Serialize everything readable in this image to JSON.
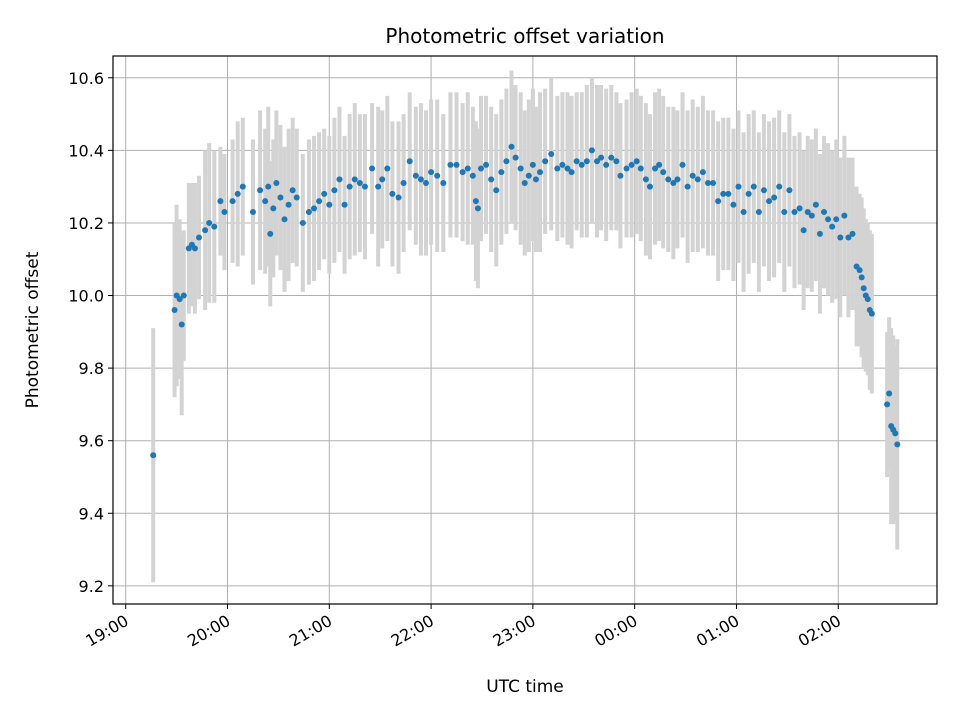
{
  "chart_data": {
    "type": "scatter",
    "title": "Photometric offset variation",
    "xlabel": "UTC time",
    "ylabel": "Photometric offset",
    "x_unit": "hours (clock time, values after 24 = next day)",
    "xlim": [
      18.875,
      26.97
    ],
    "ylim": [
      9.15,
      10.66
    ],
    "grid": true,
    "x_ticks": [
      {
        "value": 19,
        "label": "19:00"
      },
      {
        "value": 20,
        "label": "20:00"
      },
      {
        "value": 21,
        "label": "21:00"
      },
      {
        "value": 22,
        "label": "22:00"
      },
      {
        "value": 23,
        "label": "23:00"
      },
      {
        "value": 24,
        "label": "00:00"
      },
      {
        "value": 25,
        "label": "01:00"
      },
      {
        "value": 26,
        "label": "02:00"
      }
    ],
    "y_ticks": [
      {
        "value": 9.2,
        "label": "9.2"
      },
      {
        "value": 9.4,
        "label": "9.4"
      },
      {
        "value": 9.6,
        "label": "9.6"
      },
      {
        "value": 9.8,
        "label": "9.8"
      },
      {
        "value": 10.0,
        "label": "10.0"
      },
      {
        "value": 10.2,
        "label": "10.2"
      },
      {
        "value": 10.4,
        "label": "10.4"
      },
      {
        "value": 10.6,
        "label": "10.6"
      }
    ],
    "colors": {
      "point": "#1f77b4",
      "errorbar": "#d3d3d3",
      "grid": "#b0b0b0"
    },
    "series": [
      {
        "values": [
          [
            19.27,
            9.56,
            0.35
          ],
          [
            19.48,
            9.96,
            0.24
          ],
          [
            19.5,
            10.0,
            0.25
          ],
          [
            19.53,
            9.99,
            0.22
          ],
          [
            19.55,
            9.92,
            0.25
          ],
          [
            19.57,
            10.0,
            0.18
          ],
          [
            19.62,
            10.13,
            0.18
          ],
          [
            19.65,
            10.14,
            0.17
          ],
          [
            19.68,
            10.13,
            0.18
          ],
          [
            19.72,
            10.16,
            0.17
          ],
          [
            19.78,
            10.18,
            0.22
          ],
          [
            19.82,
            10.2,
            0.22
          ],
          [
            19.87,
            10.19,
            0.21
          ],
          [
            19.93,
            10.26,
            0.15
          ],
          [
            19.97,
            10.23,
            0.16
          ],
          [
            20.05,
            10.26,
            0.17
          ],
          [
            20.1,
            10.28,
            0.2
          ],
          [
            20.15,
            10.3,
            0.19
          ],
          [
            20.25,
            10.23,
            0.2
          ],
          [
            20.32,
            10.29,
            0.22
          ],
          [
            20.37,
            10.26,
            0.2
          ],
          [
            20.4,
            10.3,
            0.22
          ],
          [
            20.42,
            10.17,
            0.2
          ],
          [
            20.45,
            10.24,
            0.19
          ],
          [
            20.48,
            10.31,
            0.2
          ],
          [
            20.52,
            10.27,
            0.2
          ],
          [
            20.56,
            10.21,
            0.2
          ],
          [
            20.6,
            10.25,
            0.21
          ],
          [
            20.64,
            10.29,
            0.2
          ],
          [
            20.68,
            10.27,
            0.19
          ],
          [
            20.74,
            10.2,
            0.19
          ],
          [
            20.8,
            10.23,
            0.2
          ],
          [
            20.85,
            10.24,
            0.2
          ],
          [
            20.9,
            10.26,
            0.19
          ],
          [
            20.95,
            10.28,
            0.18
          ],
          [
            21.0,
            10.25,
            0.19
          ],
          [
            21.05,
            10.29,
            0.2
          ],
          [
            21.1,
            10.32,
            0.2
          ],
          [
            21.15,
            10.25,
            0.19
          ],
          [
            21.2,
            10.3,
            0.2
          ],
          [
            21.25,
            10.32,
            0.21
          ],
          [
            21.3,
            10.31,
            0.19
          ],
          [
            21.35,
            10.3,
            0.2
          ],
          [
            21.42,
            10.35,
            0.18
          ],
          [
            21.48,
            10.3,
            0.22
          ],
          [
            21.52,
            10.32,
            0.19
          ],
          [
            21.57,
            10.35,
            0.2
          ],
          [
            21.62,
            10.28,
            0.2
          ],
          [
            21.68,
            10.27,
            0.21
          ],
          [
            21.73,
            10.31,
            0.19
          ],
          [
            21.79,
            10.37,
            0.19
          ],
          [
            21.85,
            10.33,
            0.19
          ],
          [
            21.9,
            10.32,
            0.21
          ],
          [
            21.95,
            10.31,
            0.2
          ],
          [
            22.0,
            10.34,
            0.2
          ],
          [
            22.06,
            10.33,
            0.21
          ],
          [
            22.12,
            10.31,
            0.19
          ],
          [
            22.19,
            10.36,
            0.2
          ],
          [
            22.25,
            10.36,
            0.2
          ],
          [
            22.31,
            10.34,
            0.19
          ],
          [
            22.36,
            10.35,
            0.21
          ],
          [
            22.41,
            10.33,
            0.19
          ],
          [
            22.44,
            10.26,
            0.22
          ],
          [
            22.46,
            10.24,
            0.22
          ],
          [
            22.49,
            10.35,
            0.2
          ],
          [
            22.54,
            10.36,
            0.19
          ],
          [
            22.59,
            10.32,
            0.2
          ],
          [
            22.64,
            10.29,
            0.21
          ],
          [
            22.69,
            10.34,
            0.2
          ],
          [
            22.74,
            10.37,
            0.2
          ],
          [
            22.79,
            10.41,
            0.21
          ],
          [
            22.83,
            10.38,
            0.2
          ],
          [
            22.88,
            10.35,
            0.21
          ],
          [
            22.92,
            10.31,
            0.2
          ],
          [
            22.96,
            10.33,
            0.21
          ],
          [
            23.0,
            10.36,
            0.21
          ],
          [
            23.03,
            10.32,
            0.2
          ],
          [
            23.07,
            10.34,
            0.22
          ],
          [
            23.12,
            10.37,
            0.2
          ],
          [
            23.18,
            10.39,
            0.21
          ],
          [
            23.24,
            10.35,
            0.2
          ],
          [
            23.29,
            10.36,
            0.2
          ],
          [
            23.34,
            10.35,
            0.21
          ],
          [
            23.38,
            10.34,
            0.21
          ],
          [
            23.43,
            10.37,
            0.19
          ],
          [
            23.48,
            10.36,
            0.2
          ],
          [
            23.53,
            10.37,
            0.21
          ],
          [
            23.58,
            10.4,
            0.2
          ],
          [
            23.63,
            10.37,
            0.21
          ],
          [
            23.67,
            10.38,
            0.2
          ],
          [
            23.72,
            10.36,
            0.21
          ],
          [
            23.77,
            10.38,
            0.2
          ],
          [
            23.82,
            10.37,
            0.19
          ],
          [
            23.86,
            10.33,
            0.2
          ],
          [
            23.92,
            10.35,
            0.19
          ],
          [
            23.97,
            10.36,
            0.2
          ],
          [
            24.02,
            10.37,
            0.2
          ],
          [
            24.06,
            10.35,
            0.2
          ],
          [
            24.11,
            10.32,
            0.21
          ],
          [
            24.15,
            10.3,
            0.2
          ],
          [
            24.2,
            10.35,
            0.21
          ],
          [
            24.24,
            10.36,
            0.21
          ],
          [
            24.28,
            10.34,
            0.21
          ],
          [
            24.33,
            10.32,
            0.2
          ],
          [
            24.38,
            10.31,
            0.21
          ],
          [
            24.42,
            10.32,
            0.19
          ],
          [
            24.47,
            10.36,
            0.2
          ],
          [
            24.52,
            10.3,
            0.21
          ],
          [
            24.57,
            10.33,
            0.21
          ],
          [
            24.62,
            10.32,
            0.2
          ],
          [
            24.67,
            10.34,
            0.21
          ],
          [
            24.72,
            10.31,
            0.2
          ],
          [
            24.77,
            10.31,
            0.2
          ],
          [
            24.82,
            10.26,
            0.22
          ],
          [
            24.87,
            10.28,
            0.21
          ],
          [
            24.92,
            10.28,
            0.21
          ],
          [
            24.97,
            10.25,
            0.21
          ],
          [
            25.02,
            10.3,
            0.21
          ],
          [
            25.07,
            10.23,
            0.22
          ],
          [
            25.12,
            10.28,
            0.22
          ],
          [
            25.17,
            10.3,
            0.21
          ],
          [
            25.22,
            10.23,
            0.22
          ],
          [
            25.27,
            10.29,
            0.21
          ],
          [
            25.32,
            10.26,
            0.22
          ],
          [
            25.37,
            10.27,
            0.22
          ],
          [
            25.42,
            10.3,
            0.21
          ],
          [
            25.47,
            10.23,
            0.22
          ],
          [
            25.52,
            10.29,
            0.21
          ],
          [
            25.57,
            10.23,
            0.21
          ],
          [
            25.62,
            10.24,
            0.21
          ],
          [
            25.66,
            10.18,
            0.22
          ],
          [
            25.7,
            10.23,
            0.21
          ],
          [
            25.74,
            10.22,
            0.21
          ],
          [
            25.78,
            10.25,
            0.21
          ],
          [
            25.82,
            10.17,
            0.22
          ],
          [
            25.86,
            10.23,
            0.21
          ],
          [
            25.9,
            10.21,
            0.21
          ],
          [
            25.94,
            10.19,
            0.21
          ],
          [
            25.98,
            10.21,
            0.22
          ],
          [
            26.02,
            10.16,
            0.22
          ],
          [
            26.06,
            10.22,
            0.22
          ],
          [
            26.1,
            10.16,
            0.22
          ],
          [
            26.14,
            10.17,
            0.21
          ],
          [
            26.18,
            10.08,
            0.22
          ],
          [
            26.21,
            10.07,
            0.21
          ],
          [
            26.23,
            10.05,
            0.22
          ],
          [
            26.25,
            10.02,
            0.22
          ],
          [
            26.27,
            10.0,
            0.21
          ],
          [
            26.29,
            9.99,
            0.21
          ],
          [
            26.31,
            9.96,
            0.22
          ],
          [
            26.33,
            9.95,
            0.22
          ],
          [
            26.48,
            9.7,
            0.2
          ],
          [
            26.5,
            9.73,
            0.21
          ],
          [
            26.52,
            9.64,
            0.27
          ],
          [
            26.54,
            9.63,
            0.26
          ],
          [
            26.56,
            9.62,
            0.24
          ],
          [
            26.58,
            9.59,
            0.29
          ]
        ]
      }
    ]
  }
}
